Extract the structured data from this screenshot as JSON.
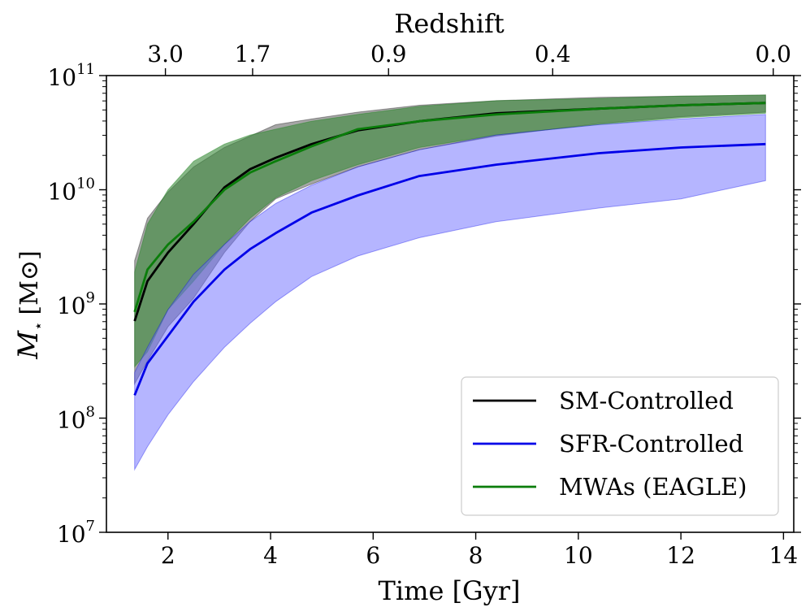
{
  "chart_data": {
    "type": "line",
    "xlabel": "Time [Gyr]",
    "ylabel_main": "M",
    "ylabel_sub": "⋆",
    "ylabel_unit": "[M⊙]",
    "top_axis_label": "Redshift",
    "xlim": [
      0.8,
      14.2
    ],
    "ylim_log10": [
      7,
      11
    ],
    "x_ticks": [
      {
        "value": 2,
        "label": "2"
      },
      {
        "value": 4,
        "label": "4"
      },
      {
        "value": 6,
        "label": "6"
      },
      {
        "value": 8,
        "label": "8"
      },
      {
        "value": 10,
        "label": "10"
      },
      {
        "value": 12,
        "label": "12"
      },
      {
        "value": 14,
        "label": "14"
      }
    ],
    "y_ticks": [
      {
        "exp": 7,
        "base": "10",
        "sup": "7"
      },
      {
        "exp": 8,
        "base": "10",
        "sup": "8"
      },
      {
        "exp": 9,
        "base": "10",
        "sup": "9"
      },
      {
        "exp": 10,
        "base": "10",
        "sup": "10"
      },
      {
        "exp": 11,
        "base": "10",
        "sup": "11"
      }
    ],
    "top_ticks": [
      {
        "time": 1.95,
        "label": "3.0"
      },
      {
        "time": 3.65,
        "label": "1.7"
      },
      {
        "time": 6.3,
        "label": "0.9"
      },
      {
        "time": 9.5,
        "label": "0.4"
      },
      {
        "time": 13.8,
        "label": "0.0"
      }
    ],
    "series": [
      {
        "name": "SM-Controlled",
        "color": "#000000",
        "fill": "#808080",
        "x": [
          1.35,
          1.6,
          2.0,
          2.5,
          3.1,
          3.6,
          4.1,
          4.8,
          5.7,
          6.9,
          8.4,
          10.4,
          12.0,
          13.65
        ],
        "median": [
          8.85,
          9.2,
          9.45,
          9.7,
          10.02,
          10.18,
          10.28,
          10.4,
          10.52,
          10.6,
          10.67,
          10.71,
          10.74,
          10.76
        ],
        "upper": [
          9.38,
          9.75,
          9.98,
          10.2,
          10.37,
          10.47,
          10.57,
          10.62,
          10.68,
          10.74,
          10.78,
          10.81,
          10.82,
          10.83
        ],
        "lower": [
          8.3,
          8.5,
          8.8,
          9.05,
          9.45,
          9.72,
          9.92,
          10.05,
          10.2,
          10.35,
          10.47,
          10.58,
          10.64,
          10.68
        ]
      },
      {
        "name": "SFR-Controlled",
        "color": "#0000e8",
        "fill": "#6b6bff",
        "x": [
          1.35,
          1.6,
          2.0,
          2.5,
          3.1,
          3.6,
          4.1,
          4.8,
          5.7,
          6.9,
          8.4,
          10.4,
          12.0,
          13.65
        ],
        "median": [
          8.2,
          8.48,
          8.72,
          9.02,
          9.3,
          9.48,
          9.62,
          9.8,
          9.95,
          10.12,
          10.22,
          10.32,
          10.37,
          10.4
        ],
        "upper": [
          8.4,
          8.62,
          8.95,
          9.26,
          9.52,
          9.72,
          9.88,
          10.04,
          10.2,
          10.35,
          10.48,
          10.57,
          10.62,
          10.66
        ],
        "lower": [
          7.55,
          7.75,
          8.03,
          8.32,
          8.62,
          8.83,
          9.02,
          9.24,
          9.42,
          9.58,
          9.72,
          9.84,
          9.92,
          10.08
        ]
      },
      {
        "name": "MWAs (EAGLE)",
        "color": "#0a7d0a",
        "fill": "#3e8a3e",
        "x": [
          1.35,
          1.6,
          2.0,
          2.5,
          3.1,
          3.6,
          4.1,
          4.8,
          5.7,
          6.9,
          8.4,
          10.4,
          12.0,
          13.65
        ],
        "median": [
          8.93,
          9.3,
          9.52,
          9.72,
          10.0,
          10.15,
          10.25,
          10.38,
          10.53,
          10.6,
          10.66,
          10.71,
          10.74,
          10.76
        ],
        "upper": [
          9.28,
          9.7,
          10.0,
          10.25,
          10.4,
          10.48,
          10.53,
          10.6,
          10.66,
          10.73,
          10.78,
          10.8,
          10.82,
          10.83
        ],
        "lower": [
          8.45,
          8.58,
          8.95,
          9.2,
          9.52,
          9.75,
          9.93,
          10.08,
          10.22,
          10.37,
          10.48,
          10.57,
          10.63,
          10.67
        ]
      }
    ],
    "legend": {
      "position": "lower-right"
    }
  }
}
